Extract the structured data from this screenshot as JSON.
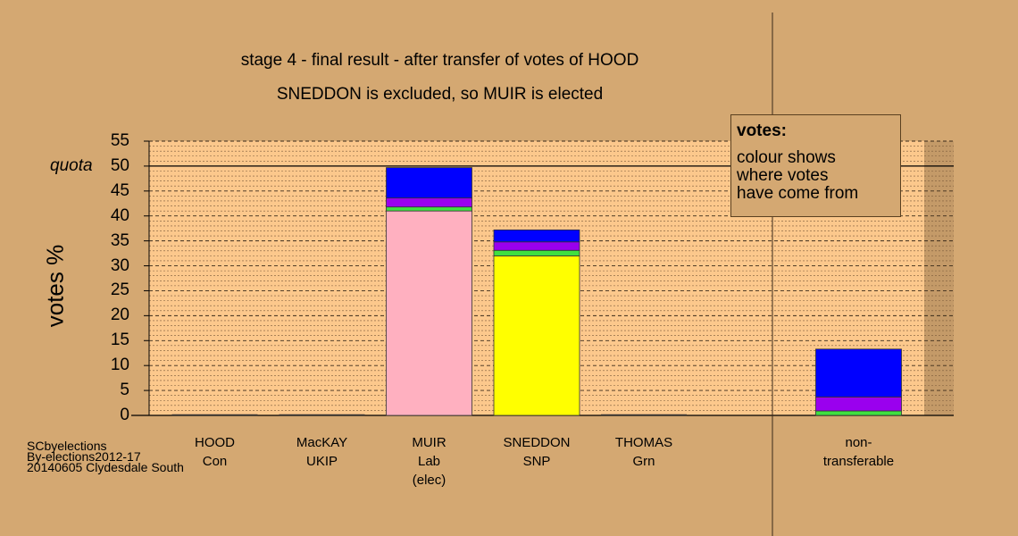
{
  "chart_data": {
    "type": "bar",
    "stacked": true,
    "title": "stage 4 - final result - after transfer of votes of HOOD",
    "subtitle": "SNEDDON is excluded, so MUIR is elected",
    "ylabel": "votes %",
    "ylim": [
      0,
      55
    ],
    "yticks": [
      0,
      5,
      10,
      15,
      20,
      25,
      30,
      35,
      40,
      45,
      50,
      55
    ],
    "quota": {
      "label": "quota",
      "value": 50
    },
    "grid": true,
    "categories": [
      {
        "lines": [
          "HOOD",
          "Con"
        ]
      },
      {
        "lines": [
          "MacKAY",
          "UKIP"
        ]
      },
      {
        "lines": [
          "MUIR",
          "Lab",
          "(elec)"
        ]
      },
      {
        "lines": [
          "SNEDDON",
          "SNP"
        ]
      },
      {
        "lines": [
          "THOMAS",
          "Grn"
        ]
      },
      {
        "lines": [
          "non-",
          "transferable"
        ]
      }
    ],
    "series": [
      {
        "color": "#ffb0c0",
        "values": [
          0,
          0,
          41.0,
          0,
          0,
          0
        ]
      },
      {
        "color": "#ffff00",
        "values": [
          0,
          0,
          0,
          32.0,
          0,
          0
        ]
      },
      {
        "color": "#40e040",
        "values": [
          0,
          0,
          0.8,
          1.1,
          0,
          0.9
        ]
      },
      {
        "color": "#9a00ee",
        "values": [
          0,
          0,
          1.8,
          1.7,
          0,
          2.8
        ]
      },
      {
        "color": "#0000ff",
        "values": [
          0,
          0,
          6.1,
          2.4,
          0,
          9.6
        ]
      }
    ],
    "legend": {
      "title": "votes:",
      "lines": [
        "colour shows",
        "where votes",
        "have come from"
      ],
      "position": "top-right"
    }
  },
  "footer": {
    "line1": "SCbyelections",
    "line2": "By-elections2012-17",
    "line3": "20140605 Clydesdale South"
  }
}
